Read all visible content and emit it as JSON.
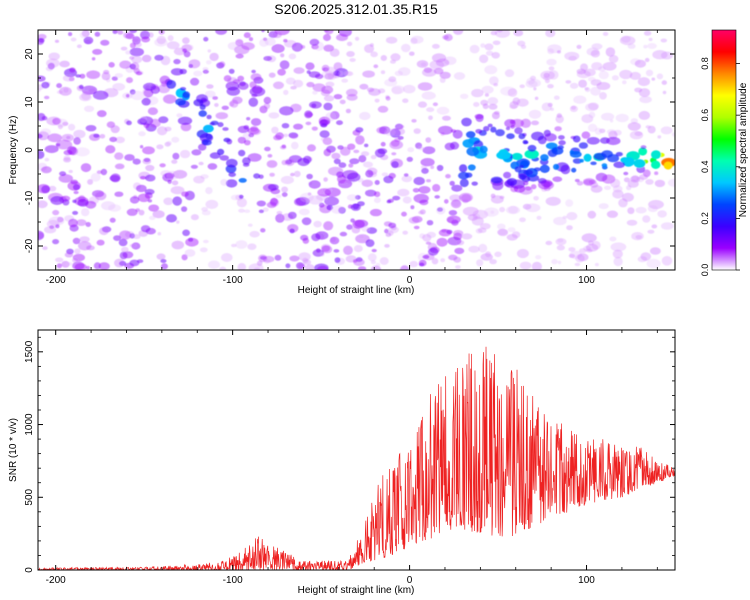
{
  "figure_title": "S206.2025.312.01.35.R15",
  "chart_data": [
    {
      "type": "heatmap",
      "title": "S206.2025.312.01.35.R15",
      "xlabel": "Height of straight line (km)",
      "ylabel": "Frequency (Hz)",
      "xlim": [
        -210,
        150
      ],
      "ylim": [
        -25,
        25
      ],
      "x_ticks": [
        -200,
        -100,
        0,
        100
      ],
      "x_tick_labels": [
        "-200",
        "-100",
        "0",
        "100"
      ],
      "y_ticks": [
        -20,
        -10,
        0,
        10,
        20
      ],
      "y_tick_labels": [
        "-20",
        "-10",
        "0",
        "10",
        "20"
      ],
      "colorbar": {
        "label": "Normalized spectral amplitude",
        "range": [
          0,
          0.93
        ],
        "ticks": [
          0,
          0.2,
          0.4,
          0.6,
          0.8
        ],
        "tick_labels": [
          "0.0",
          "0.2",
          "0.4",
          "0.6",
          "0.8"
        ],
        "colormap": [
          "#ffffff",
          "#9a00ff",
          "#3b00ff",
          "#0044ff",
          "#00c8ff",
          "#00ffb0",
          "#00ff00",
          "#b0ff00",
          "#ffff00",
          "#ff8800",
          "#ff0000",
          "#ff0066"
        ]
      },
      "features": [
        {
          "name": "high-amplitude ridge",
          "x_range": [
            -135,
            -85
          ],
          "frequency_range": [
            15,
            -10
          ],
          "peak_amplitude": 0.3
        },
        {
          "name": "narrowband tail",
          "x_range": [
            40,
            150
          ],
          "frequency_center": -1,
          "peak_amplitude": 0.9
        }
      ]
    },
    {
      "type": "line",
      "xlabel": "Height of straight line (km)",
      "ylabel": "SNR (10 * v/v)",
      "xlim": [
        -210,
        150
      ],
      "ylim": [
        0,
        1650
      ],
      "x_ticks": [
        -200,
        -100,
        0,
        100
      ],
      "x_tick_labels": [
        "-200",
        "-100",
        "0",
        "100"
      ],
      "y_ticks": [
        0,
        500,
        1000,
        1500
      ],
      "y_tick_labels": [
        "0",
        "500",
        "1000",
        "1500"
      ],
      "color": "#ee2222",
      "series": [
        {
          "name": "SNR envelope",
          "x": [
            -210,
            -150,
            -120,
            -100,
            -85,
            -75,
            -60,
            -40,
            -35,
            -25,
            -15,
            0,
            10,
            20,
            30,
            40,
            50,
            60,
            70,
            80,
            90,
            100,
            110,
            120,
            130,
            140,
            150
          ],
          "upper": [
            15,
            20,
            40,
            90,
            240,
            160,
            60,
            70,
            60,
            350,
            700,
            900,
            1200,
            1350,
            1500,
            1620,
            1500,
            1400,
            1200,
            1050,
            1000,
            950,
            900,
            880,
            850,
            780,
            700
          ],
          "lower": [
            0,
            0,
            0,
            0,
            0,
            0,
            0,
            0,
            0,
            50,
            80,
            150,
            200,
            250,
            280,
            250,
            230,
            230,
            300,
            350,
            400,
            450,
            480,
            500,
            550,
            600,
            650
          ]
        }
      ]
    }
  ]
}
